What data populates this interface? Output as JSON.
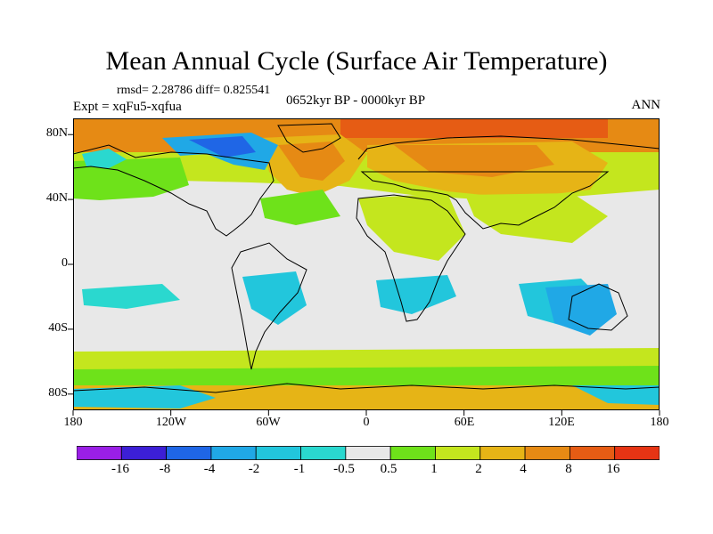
{
  "figure": {
    "title": "Mean Annual Cycle (Surface Air Temperature)",
    "stats": "rmsd= 2.28786 diff= 0.825541",
    "experiment": "Expt = xqFu5-xqfua",
    "period": "0652kyr BP - 0000kyr BP",
    "season": "ANN"
  },
  "map": {
    "projection": "cylindrical equidistant",
    "lon_range": [
      -180,
      180
    ],
    "lat_range": [
      -90,
      90
    ],
    "x_tick_labels": [
      "180",
      "120W",
      "60W",
      "0",
      "60E",
      "120E",
      "180"
    ],
    "y_tick_labels": [
      "80N",
      "40N",
      "0",
      "40S",
      "80S"
    ],
    "background_color": "#e8e8e8",
    "coastline_color": "#000000"
  },
  "colorbar": {
    "levels": [
      "-16",
      "-8",
      "-4",
      "-2",
      "-1",
      "-0.5",
      "0.5",
      "1",
      "2",
      "4",
      "8",
      "16"
    ],
    "colors": [
      "#9a1fe6",
      "#3c1fd6",
      "#1f66e6",
      "#20a8e6",
      "#22c6dc",
      "#2ad8cf",
      "#e8e8e8",
      "#6ee21a",
      "#c4e61e",
      "#e6b416",
      "#e68a14",
      "#e65c14",
      "#e63414"
    ]
  }
}
